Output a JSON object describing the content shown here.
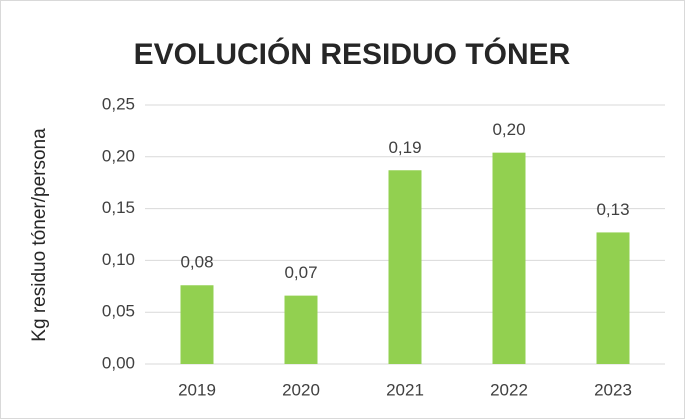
{
  "chart_data": {
    "type": "bar",
    "title": "EVOLUCIÓN RESIDUO TÓNER",
    "ylabel": "Kg residuo tóner/persona",
    "categories": [
      "2019",
      "2020",
      "2021",
      "2022",
      "2023"
    ],
    "values": [
      0.076,
      0.066,
      0.187,
      0.204,
      0.127
    ],
    "value_labels": [
      "0,08",
      "0,07",
      "0,19",
      "0,20",
      "0,13"
    ],
    "color": "#92d050",
    "ylim": [
      0,
      0.25
    ],
    "yticks": [
      {
        "value": 0,
        "label": "0,00"
      },
      {
        "value": 0.05,
        "label": "0,05"
      },
      {
        "value": 0.1,
        "label": "0,10"
      },
      {
        "value": 0.15,
        "label": "0,15"
      },
      {
        "value": 0.2,
        "label": "0,20"
      },
      {
        "value": 0.25,
        "label": "0,25"
      }
    ],
    "grid": true
  }
}
